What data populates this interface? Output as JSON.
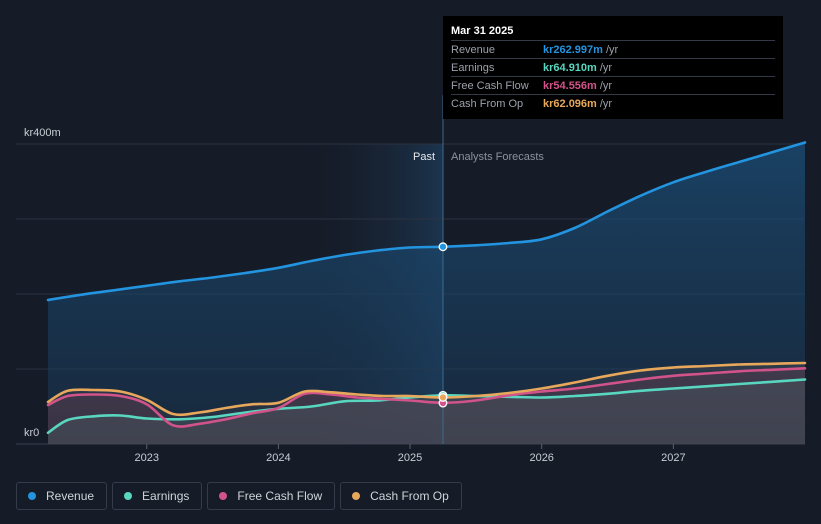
{
  "chart_data": {
    "type": "area",
    "y_unit_prefix": "kr",
    "ylim": [
      0,
      400
    ],
    "xlim": [
      2022.25,
      2028.0
    ],
    "y_labels": {
      "top": "kr400m",
      "bottom": "kr0"
    },
    "x_ticks": [
      "2023",
      "2024",
      "2025",
      "2026",
      "2027"
    ],
    "past_label": "Past",
    "forecast_label": "Analysts Forecasts",
    "divider_x": 2025.25,
    "series": [
      {
        "name": "Revenue",
        "color": "#2394df",
        "points": [
          [
            2022.25,
            192
          ],
          [
            2022.5,
            199
          ],
          [
            2022.75,
            205
          ],
          [
            2023.0,
            211
          ],
          [
            2023.25,
            217
          ],
          [
            2023.5,
            222
          ],
          [
            2023.75,
            228
          ],
          [
            2024.0,
            235
          ],
          [
            2024.25,
            244
          ],
          [
            2024.5,
            252
          ],
          [
            2024.75,
            258
          ],
          [
            2025.0,
            262
          ],
          [
            2025.25,
            263
          ],
          [
            2025.5,
            265
          ],
          [
            2025.75,
            268
          ],
          [
            2026.0,
            273
          ],
          [
            2026.25,
            288
          ],
          [
            2026.5,
            310
          ],
          [
            2026.75,
            331
          ],
          [
            2027.0,
            349
          ],
          [
            2027.25,
            363
          ],
          [
            2027.5,
            376
          ],
          [
            2027.75,
            389
          ],
          [
            2028.0,
            402
          ]
        ]
      },
      {
        "name": "Earnings",
        "color": "#58d6c0",
        "points": [
          [
            2022.25,
            15
          ],
          [
            2022.4,
            32
          ],
          [
            2022.6,
            37
          ],
          [
            2022.8,
            38
          ],
          [
            2023.0,
            34
          ],
          [
            2023.25,
            33
          ],
          [
            2023.5,
            36
          ],
          [
            2023.75,
            42
          ],
          [
            2024.0,
            47
          ],
          [
            2024.25,
            50
          ],
          [
            2024.5,
            57
          ],
          [
            2024.75,
            58
          ],
          [
            2025.0,
            62
          ],
          [
            2025.25,
            65
          ],
          [
            2025.5,
            64
          ],
          [
            2025.75,
            63
          ],
          [
            2026.0,
            62
          ],
          [
            2026.25,
            64
          ],
          [
            2026.5,
            67
          ],
          [
            2026.75,
            71
          ],
          [
            2027.0,
            74
          ],
          [
            2027.25,
            77
          ],
          [
            2027.5,
            80
          ],
          [
            2027.75,
            83
          ],
          [
            2028.0,
            86
          ]
        ]
      },
      {
        "name": "Free Cash Flow",
        "color": "#d2538a",
        "points": [
          [
            2022.25,
            52
          ],
          [
            2022.4,
            64
          ],
          [
            2022.6,
            66
          ],
          [
            2022.8,
            64
          ],
          [
            2023.0,
            53
          ],
          [
            2023.2,
            25
          ],
          [
            2023.4,
            27
          ],
          [
            2023.6,
            33
          ],
          [
            2023.8,
            41
          ],
          [
            2024.0,
            48
          ],
          [
            2024.2,
            67
          ],
          [
            2024.4,
            66
          ],
          [
            2024.6,
            62
          ],
          [
            2024.8,
            60
          ],
          [
            2025.0,
            58
          ],
          [
            2025.25,
            55
          ],
          [
            2025.5,
            58
          ],
          [
            2025.75,
            65
          ],
          [
            2026.0,
            70
          ],
          [
            2026.25,
            74
          ],
          [
            2026.5,
            80
          ],
          [
            2026.75,
            86
          ],
          [
            2027.0,
            91
          ],
          [
            2027.25,
            94
          ],
          [
            2027.5,
            97
          ],
          [
            2027.75,
            99
          ],
          [
            2028.0,
            101
          ]
        ]
      },
      {
        "name": "Cash From Op",
        "color": "#e8a85c",
        "points": [
          [
            2022.25,
            56
          ],
          [
            2022.4,
            71
          ],
          [
            2022.6,
            72
          ],
          [
            2022.8,
            70
          ],
          [
            2023.0,
            59
          ],
          [
            2023.2,
            40
          ],
          [
            2023.4,
            42
          ],
          [
            2023.6,
            48
          ],
          [
            2023.8,
            53
          ],
          [
            2024.0,
            55
          ],
          [
            2024.2,
            70
          ],
          [
            2024.4,
            69
          ],
          [
            2024.6,
            66
          ],
          [
            2024.8,
            64
          ],
          [
            2025.0,
            64
          ],
          [
            2025.25,
            62
          ],
          [
            2025.5,
            64
          ],
          [
            2025.75,
            68
          ],
          [
            2026.0,
            74
          ],
          [
            2026.25,
            82
          ],
          [
            2026.5,
            91
          ],
          [
            2026.75,
            98
          ],
          [
            2027.0,
            102
          ],
          [
            2027.25,
            104
          ],
          [
            2027.5,
            106
          ],
          [
            2027.75,
            107
          ],
          [
            2028.0,
            108
          ]
        ]
      }
    ],
    "marker_values": [
      263.0,
      64.9,
      54.6,
      62.1
    ]
  },
  "tooltip": {
    "date": "Mar 31 2025",
    "rows": [
      {
        "label": "Revenue",
        "value": "kr262.997m",
        "unit": "/yr",
        "color": "#2394df"
      },
      {
        "label": "Earnings",
        "value": "kr64.910m",
        "unit": "/yr",
        "color": "#58d6c0"
      },
      {
        "label": "Free Cash Flow",
        "value": "kr54.556m",
        "unit": "/yr",
        "color": "#d2538a"
      },
      {
        "label": "Cash From Op",
        "value": "kr62.096m",
        "unit": "/yr",
        "color": "#e8a85c"
      }
    ]
  },
  "legend": [
    {
      "label": "Revenue",
      "color": "#2394df"
    },
    {
      "label": "Earnings",
      "color": "#58d6c0"
    },
    {
      "label": "Free Cash Flow",
      "color": "#d2538a"
    },
    {
      "label": "Cash From Op",
      "color": "#e8a85c"
    }
  ]
}
